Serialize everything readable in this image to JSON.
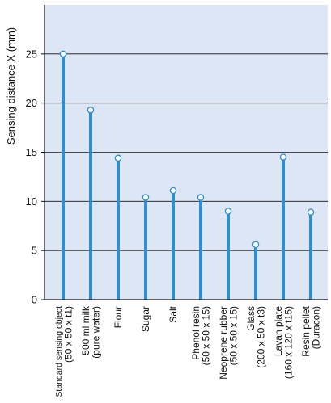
{
  "chart_data": {
    "type": "bar",
    "ylabel": "Sensing distance X (mm)",
    "ylim": [
      0,
      30
    ],
    "yticks": [
      0,
      5,
      10,
      15,
      20,
      25
    ],
    "grid": true,
    "colors": {
      "plot_background": "#dde6f4",
      "bar": "#2f8ecb",
      "marker_fill": "#ffffff",
      "marker_stroke": "#2f8ecb",
      "gridline": "#111111"
    },
    "categories": [
      [
        "Standard sensing object",
        "(50 x 50 x t1)"
      ],
      [
        "500 ml milk",
        "(pure water)"
      ],
      [
        "Flour"
      ],
      [
        "Sugar"
      ],
      [
        "Salt"
      ],
      [
        "Phenol resin",
        "(50 x 50 x 15)"
      ],
      [
        "Neoprene rubber",
        "(50 x 50 x 15)"
      ],
      [
        "Glass",
        "(200 x 50 x t3)"
      ],
      [
        "Lavan plate",
        "(160 x 120 x t15)"
      ],
      [
        "Resin pellet",
        "(Duracon)"
      ]
    ],
    "values": [
      25,
      19.3,
      14.4,
      10.4,
      11.1,
      10.4,
      9.0,
      5.6,
      14.5,
      8.9
    ]
  }
}
